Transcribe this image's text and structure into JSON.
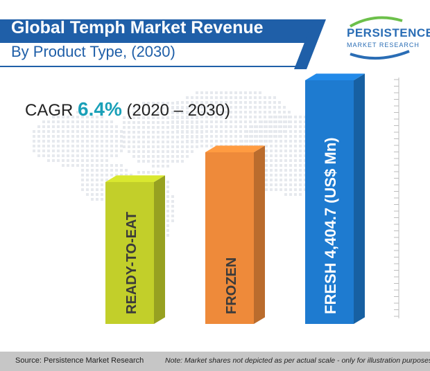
{
  "header": {
    "title_line1": "Global Temph Market Revenue",
    "title_line2": "By Product Type, (2030)"
  },
  "logo": {
    "name": "PERSISTENCE",
    "subtitle": "MARKET RESEARCH"
  },
  "cagr": {
    "label": "CAGR",
    "value": "6.4%",
    "period": "(2020 – 2030)"
  },
  "chart_data": {
    "type": "bar",
    "title": "Global Temph Market Revenue By Product Type, (2030)",
    "categories": [
      "READY-TO-EAT",
      "FROZEN",
      "FRESH"
    ],
    "values": [
      null,
      null,
      4404.7
    ],
    "bar_labels": [
      "READY-TO-EAT",
      "FROZEN",
      "FRESH  4,404.7 (US$ Mn)"
    ],
    "colors": [
      "#c2cf2a",
      "#ee8a3a",
      "#1e7bd0"
    ],
    "grid": false
  },
  "footer": {
    "source": "Source: Persistence Market Research",
    "note": "Note: Market shares not depicted as per actual scale - only for illustration purposes"
  },
  "colors": {
    "brand_blue": "#1f5fa8",
    "accent_teal": "#1aa0b8",
    "footer_gray": "#c6c6c6"
  }
}
